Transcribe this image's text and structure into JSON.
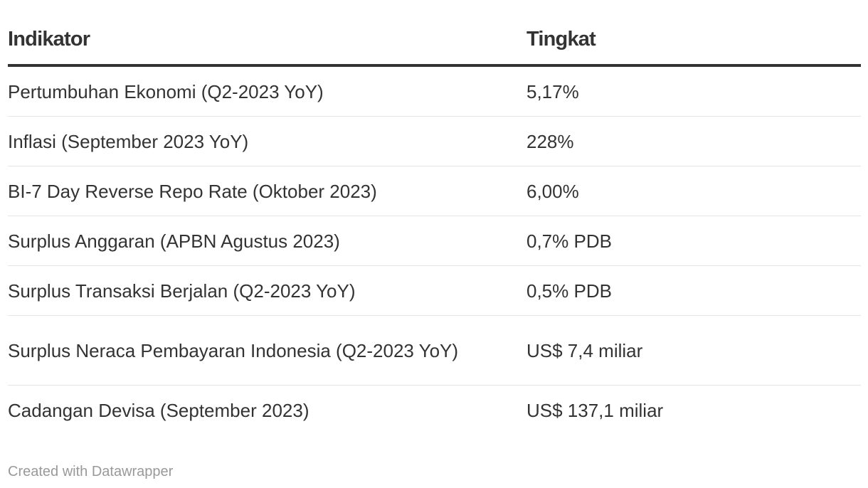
{
  "chart_data": {
    "type": "table",
    "columns": [
      "Indikator",
      "Tingkat"
    ],
    "rows": [
      [
        "Pertumbuhan Ekonomi (Q2-2023 YoY)",
        "5,17%"
      ],
      [
        "Inflasi (September 2023 YoY)",
        "228%"
      ],
      [
        "BI-7 Day Reverse Repo Rate (Oktober 2023)",
        "6,00%"
      ],
      [
        "Surplus Anggaran (APBN Agustus 2023)",
        "0,7% PDB"
      ],
      [
        "Surplus Transaksi Berjalan (Q2-2023 YoY)",
        "0,5% PDB"
      ],
      [
        "Surplus Neraca Pembayaran Indonesia (Q2-2023 YoY)",
        "US$ 7,4 miliar"
      ],
      [
        "Cadangan Devisa (September 2023)",
        "US$ 137,1 miliar"
      ]
    ]
  },
  "footer": {
    "credit": "Created with Datawrapper"
  }
}
